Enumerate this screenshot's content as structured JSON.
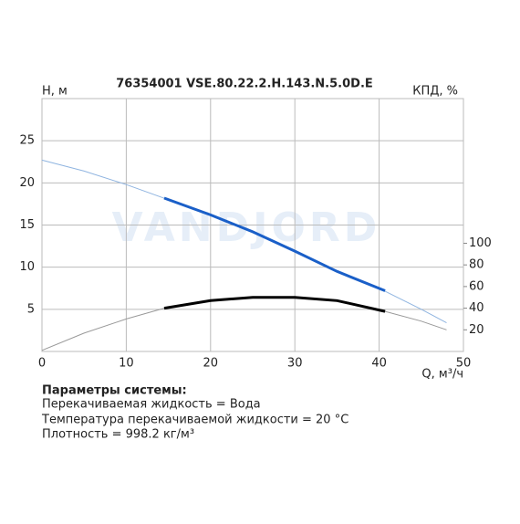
{
  "chart_data": {
    "type": "line",
    "title": "76354001 VSE.80.22.2.H.143.N.5.0D.E",
    "ylabel": "H, м",
    "y2label": "КПД, %",
    "xlabel": "Q, м³/ч",
    "watermark": "VANDJORD",
    "xlim": [
      0,
      50
    ],
    "xticks": [
      0,
      10,
      20,
      30,
      40,
      50
    ],
    "ylim": [
      0,
      30
    ],
    "yticks": [
      5,
      10,
      15,
      20,
      25
    ],
    "y2lim": [
      0,
      233.7
    ],
    "y2ticks": [
      20,
      40,
      60,
      80,
      100
    ],
    "grid": true,
    "series": [
      {
        "color": "#8fb4e0",
        "line_width": 1,
        "axis": "y",
        "x": [
          0,
          5,
          10,
          15,
          20,
          25,
          30,
          35,
          40,
          45,
          48
        ],
        "values": [
          22.7,
          21.4,
          19.8,
          18.0,
          16.2,
          14.2,
          11.9,
          9.5,
          7.5,
          5.0,
          3.4
        ]
      },
      {
        "color": "#1a5fc8",
        "line_width": 3,
        "axis": "y",
        "x": [
          14.5,
          20,
          25,
          30,
          35,
          40.7
        ],
        "values": [
          18.2,
          16.2,
          14.2,
          11.9,
          9.5,
          7.2
        ]
      },
      {
        "color": "#999999",
        "line_width": 1,
        "axis": "y2",
        "x": [
          0,
          5,
          10,
          14.5,
          20,
          25,
          30,
          35,
          40.7,
          45,
          48
        ],
        "values": [
          1,
          17,
          30,
          40,
          47,
          50,
          50,
          47,
          37,
          28,
          20
        ]
      },
      {
        "color": "#000000",
        "line_width": 3,
        "axis": "y2",
        "x": [
          14.5,
          20,
          25,
          30,
          35,
          40.7
        ],
        "values": [
          40,
          47,
          50,
          50,
          47,
          37
        ]
      }
    ]
  },
  "notes": {
    "heading": "Параметры системы:",
    "lines": [
      "Перекачиваемая жидкость = Вода",
      "Температура перекачиваемой жидкости = 20 °C",
      "Плотность = 998.2 кг/м³"
    ]
  }
}
